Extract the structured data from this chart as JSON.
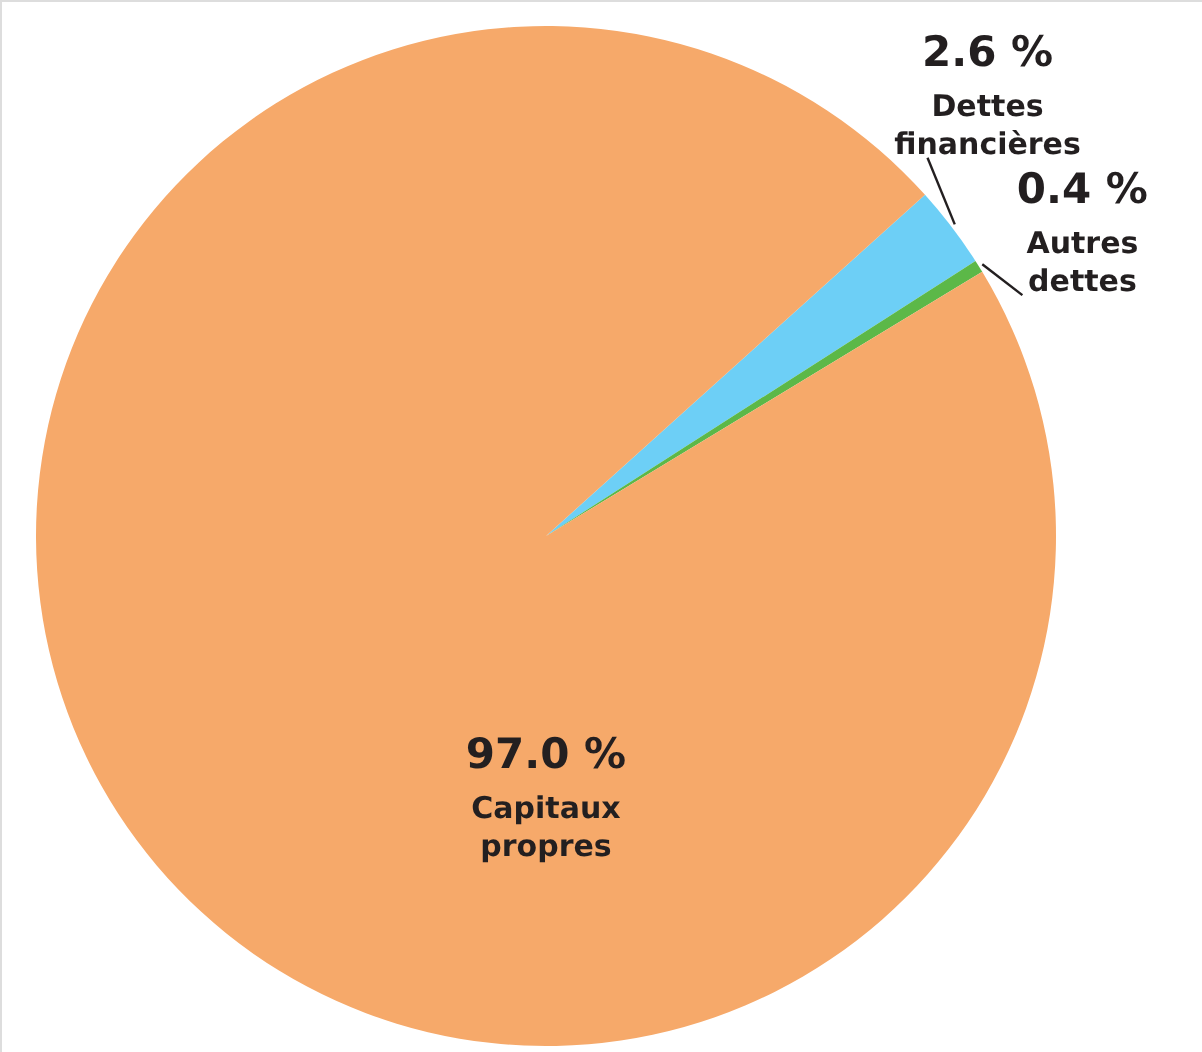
{
  "chart_data": {
    "type": "pie",
    "categories": [
      "Dettes financières",
      "Autres dettes",
      "Capitaux propres"
    ],
    "values": [
      2.6,
      0.4,
      97.0
    ],
    "colors": [
      "#6dcff6",
      "#5cb848",
      "#f6a96a"
    ],
    "value_labels": [
      "2.6 %",
      "0.4 %",
      "97.0 %"
    ]
  }
}
